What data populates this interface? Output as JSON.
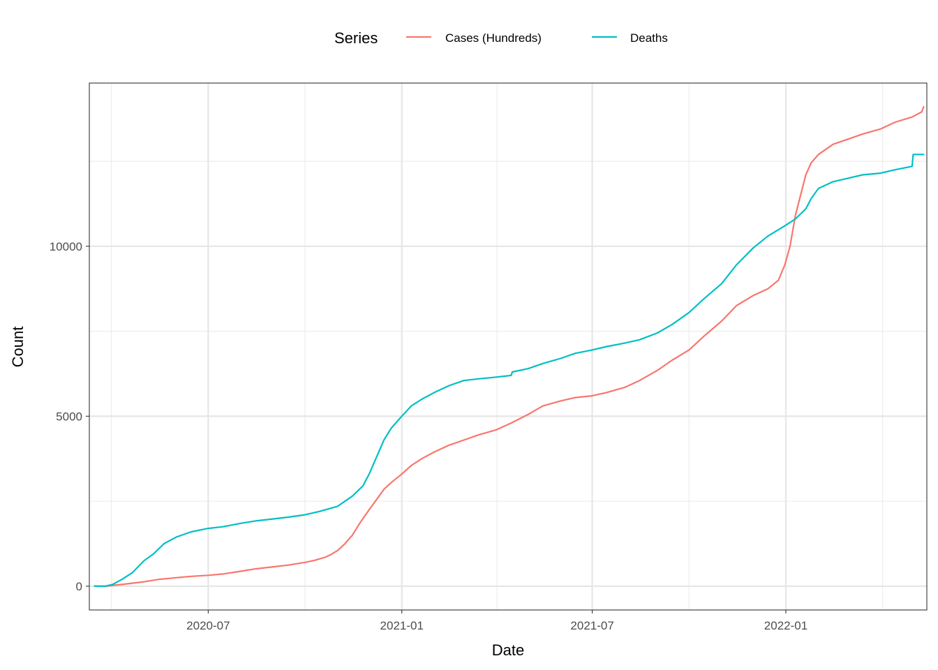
{
  "chart_data": {
    "type": "line",
    "xlabel": "Date",
    "ylabel": "Count",
    "x_ticks": [
      "2020-07",
      "2021-01",
      "2021-07",
      "2022-01"
    ],
    "y_ticks": [
      "0",
      "5000",
      "10000"
    ],
    "xlim": [
      "2020-03-10",
      "2022-05-15"
    ],
    "ylim": [
      -700,
      14800
    ],
    "grid": true,
    "legend": {
      "title": "Series",
      "position": "top"
    },
    "series": [
      {
        "name": "Cases (Hundreds)",
        "color": "#F8766D",
        "points": [
          [
            "2020-03-15",
            0
          ],
          [
            "2020-03-25",
            0
          ],
          [
            "2020-04-01",
            20
          ],
          [
            "2020-04-15",
            70
          ],
          [
            "2020-05-01",
            130
          ],
          [
            "2020-05-15",
            200
          ],
          [
            "2020-06-01",
            250
          ],
          [
            "2020-06-15",
            290
          ],
          [
            "2020-07-01",
            320
          ],
          [
            "2020-07-15",
            360
          ],
          [
            "2020-08-01",
            440
          ],
          [
            "2020-08-15",
            510
          ],
          [
            "2020-09-01",
            570
          ],
          [
            "2020-09-15",
            620
          ],
          [
            "2020-10-01",
            700
          ],
          [
            "2020-10-10",
            760
          ],
          [
            "2020-10-20",
            850
          ],
          [
            "2020-10-25",
            920
          ],
          [
            "2020-11-01",
            1050
          ],
          [
            "2020-11-08",
            1250
          ],
          [
            "2020-11-15",
            1500
          ],
          [
            "2020-11-22",
            1850
          ],
          [
            "2020-12-01",
            2250
          ],
          [
            "2020-12-08",
            2550
          ],
          [
            "2020-12-15",
            2850
          ],
          [
            "2020-12-22",
            3050
          ],
          [
            "2021-01-01",
            3300
          ],
          [
            "2021-01-10",
            3550
          ],
          [
            "2021-01-20",
            3750
          ],
          [
            "2021-02-01",
            3950
          ],
          [
            "2021-02-15",
            4150
          ],
          [
            "2021-03-01",
            4300
          ],
          [
            "2021-03-15",
            4450
          ],
          [
            "2021-04-01",
            4600
          ],
          [
            "2021-04-15",
            4800
          ],
          [
            "2021-05-01",
            5050
          ],
          [
            "2021-05-15",
            5300
          ],
          [
            "2021-06-01",
            5450
          ],
          [
            "2021-06-15",
            5550
          ],
          [
            "2021-07-01",
            5600
          ],
          [
            "2021-07-15",
            5700
          ],
          [
            "2021-08-01",
            5850
          ],
          [
            "2021-08-15",
            6050
          ],
          [
            "2021-09-01",
            6350
          ],
          [
            "2021-09-15",
            6650
          ],
          [
            "2021-10-01",
            6950
          ],
          [
            "2021-10-15",
            7350
          ],
          [
            "2021-11-01",
            7800
          ],
          [
            "2021-11-15",
            8250
          ],
          [
            "2021-12-01",
            8550
          ],
          [
            "2021-12-15",
            8750
          ],
          [
            "2021-12-25",
            9000
          ],
          [
            "2021-12-31",
            9450
          ],
          [
            "2022-01-05",
            10000
          ],
          [
            "2022-01-10",
            10900
          ],
          [
            "2022-01-15",
            11500
          ],
          [
            "2022-01-20",
            12100
          ],
          [
            "2022-01-25",
            12450
          ],
          [
            "2022-02-01",
            12700
          ],
          [
            "2022-02-15",
            13000
          ],
          [
            "2022-03-01",
            13150
          ],
          [
            "2022-03-15",
            13300
          ],
          [
            "2022-04-01",
            13450
          ],
          [
            "2022-04-15",
            13650
          ],
          [
            "2022-05-01",
            13800
          ],
          [
            "2022-05-10",
            13950
          ],
          [
            "2022-05-12",
            14100
          ]
        ]
      },
      {
        "name": "Deaths",
        "color": "#00BFC4",
        "points": [
          [
            "2020-03-15",
            0
          ],
          [
            "2020-03-25",
            0
          ],
          [
            "2020-04-01",
            50
          ],
          [
            "2020-04-10",
            200
          ],
          [
            "2020-04-20",
            400
          ],
          [
            "2020-05-01",
            750
          ],
          [
            "2020-05-10",
            950
          ],
          [
            "2020-05-20",
            1250
          ],
          [
            "2020-06-01",
            1450
          ],
          [
            "2020-06-15",
            1600
          ],
          [
            "2020-07-01",
            1700
          ],
          [
            "2020-07-15",
            1750
          ],
          [
            "2020-08-01",
            1850
          ],
          [
            "2020-08-15",
            1920
          ],
          [
            "2020-09-01",
            1980
          ],
          [
            "2020-09-15",
            2030
          ],
          [
            "2020-10-01",
            2100
          ],
          [
            "2020-10-15",
            2200
          ],
          [
            "2020-11-01",
            2350
          ],
          [
            "2020-11-15",
            2650
          ],
          [
            "2020-11-25",
            2950
          ],
          [
            "2020-12-01",
            3300
          ],
          [
            "2020-12-08",
            3800
          ],
          [
            "2020-12-15",
            4300
          ],
          [
            "2020-12-22",
            4650
          ],
          [
            "2021-01-01",
            5000
          ],
          [
            "2021-01-10",
            5300
          ],
          [
            "2021-01-20",
            5500
          ],
          [
            "2021-02-01",
            5700
          ],
          [
            "2021-02-15",
            5900
          ],
          [
            "2021-03-01",
            6050
          ],
          [
            "2021-03-15",
            6100
          ],
          [
            "2021-04-01",
            6150
          ],
          [
            "2021-04-15",
            6200
          ],
          [
            "2021-04-16",
            6300
          ],
          [
            "2021-05-01",
            6400
          ],
          [
            "2021-05-15",
            6550
          ],
          [
            "2021-06-01",
            6700
          ],
          [
            "2021-06-15",
            6850
          ],
          [
            "2021-07-01",
            6950
          ],
          [
            "2021-07-15",
            7050
          ],
          [
            "2021-08-01",
            7150
          ],
          [
            "2021-08-15",
            7250
          ],
          [
            "2021-09-01",
            7450
          ],
          [
            "2021-09-15",
            7700
          ],
          [
            "2021-10-01",
            8050
          ],
          [
            "2021-10-15",
            8450
          ],
          [
            "2021-11-01",
            8900
          ],
          [
            "2021-11-15",
            9450
          ],
          [
            "2021-12-01",
            9950
          ],
          [
            "2021-12-15",
            10300
          ],
          [
            "2021-12-31",
            10600
          ],
          [
            "2022-01-10",
            10800
          ],
          [
            "2022-01-20",
            11100
          ],
          [
            "2022-01-25",
            11400
          ],
          [
            "2022-02-01",
            11700
          ],
          [
            "2022-02-15",
            11900
          ],
          [
            "2022-03-01",
            12000
          ],
          [
            "2022-03-15",
            12100
          ],
          [
            "2022-04-01",
            12150
          ],
          [
            "2022-04-15",
            12250
          ],
          [
            "2022-05-01",
            12350
          ],
          [
            "2022-05-02",
            12700
          ],
          [
            "2022-05-12",
            12700
          ]
        ]
      }
    ]
  }
}
